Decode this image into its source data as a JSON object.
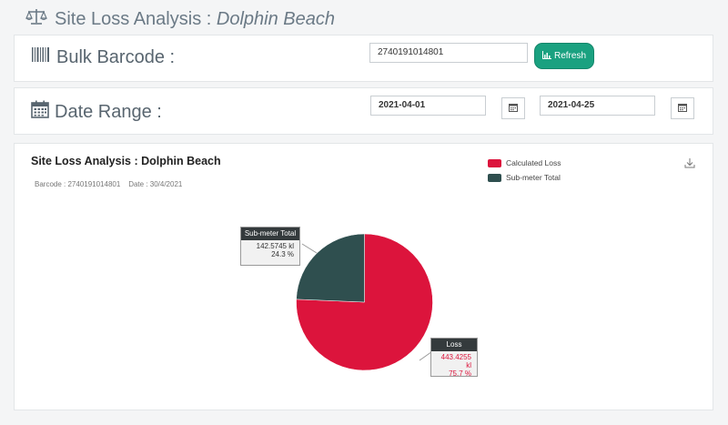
{
  "page_title": {
    "prefix": "Site Loss Analysis : ",
    "site": "Dolphin Beach",
    "icon": "scale-icon"
  },
  "barcode": {
    "label": "Bulk Barcode :",
    "icon": "barcode-icon",
    "value": "2740191014801",
    "refresh_label": "Refresh",
    "refresh_icon": "bar-chart-icon"
  },
  "date_range": {
    "label": "Date Range :",
    "icon": "calendar-icon",
    "from": "2021-04-01",
    "to": "2021-04-25"
  },
  "chart": {
    "title": "Site Loss Analysis : Dolphin Beach",
    "subtitle": "Barcode : 2740191014801    Date : 30/4/2021",
    "colors": {
      "loss": "#dc143c",
      "submeter": "#2f4f4f"
    },
    "callouts": {
      "submeter": {
        "header": "Sub-meter Total",
        "value": "142.5745 kl",
        "pct": "24.3 %"
      },
      "loss": {
        "header": "Loss",
        "value": "443.4255 kl",
        "pct": "75.7 %"
      }
    }
  },
  "chart_data": {
    "type": "pie",
    "title": "Site Loss Analysis : Dolphin Beach",
    "legend": [
      "Calculated Loss",
      "Sub-meter Total"
    ],
    "legend_position": "top-right",
    "slices": [
      {
        "label": "Calculated Loss",
        "value": 443.4255,
        "percent": 75.7,
        "color": "#dc143c"
      },
      {
        "label": "Sub-meter Total",
        "value": 142.5745,
        "percent": 24.3,
        "color": "#2f4f4f"
      }
    ]
  }
}
